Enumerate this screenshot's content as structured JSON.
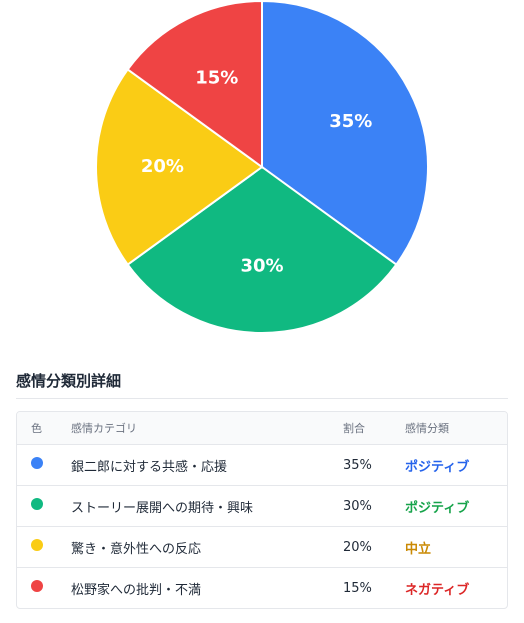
{
  "chart_data": {
    "type": "pie",
    "slices": [
      {
        "label": "35%",
        "value": 35,
        "color": "#3b82f6"
      },
      {
        "label": "30%",
        "value": 30,
        "color": "#10b981"
      },
      {
        "label": "20%",
        "value": 20,
        "color": "#facc15"
      },
      {
        "label": "15%",
        "value": 15,
        "color": "#ef4444"
      }
    ],
    "start": "top",
    "direction": "clockwise"
  },
  "details": {
    "title": "感情分類別詳細",
    "headers": {
      "color": "色",
      "category": "感情カテゴリ",
      "ratio": "割合",
      "sentiment": "感情分類"
    },
    "rows": [
      {
        "color": "#3b82f6",
        "category": "銀二郎に対する共感・応援",
        "ratio": "35%",
        "sentiment": "ポジティブ",
        "sentiment_color": "#2563eb"
      },
      {
        "color": "#10b981",
        "category": "ストーリー展開への期待・興味",
        "ratio": "30%",
        "sentiment": "ポジティブ",
        "sentiment_color": "#16a34a"
      },
      {
        "color": "#facc15",
        "category": "驚き・意外性への反応",
        "ratio": "20%",
        "sentiment": "中立",
        "sentiment_color": "#ca8a04"
      },
      {
        "color": "#ef4444",
        "category": "松野家への批判・不満",
        "ratio": "15%",
        "sentiment": "ネガティブ",
        "sentiment_color": "#dc2626"
      }
    ]
  }
}
